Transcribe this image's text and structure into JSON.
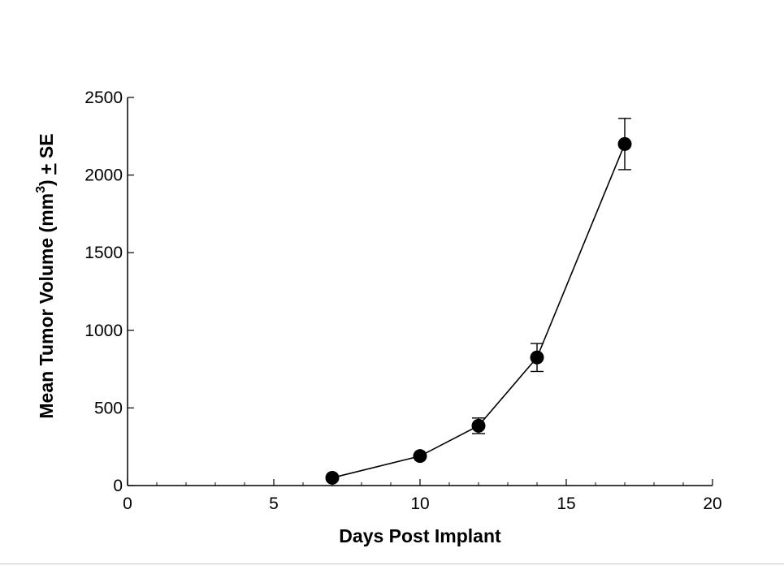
{
  "chart_data": {
    "type": "line",
    "title": "",
    "xlabel": "Days Post Implant",
    "ylabel": {
      "main": "Mean Tumor Volume (mm",
      "superscript": "3",
      "close": ")",
      "suffix": "SE"
    },
    "xlim": [
      0,
      20
    ],
    "ylim": [
      0,
      2500
    ],
    "xticks": [
      0,
      5,
      10,
      15,
      20
    ],
    "yticks": [
      0,
      500,
      1000,
      1500,
      2000,
      2500
    ],
    "xtick_labels": [
      "0",
      "5",
      "10",
      "15",
      "20"
    ],
    "ytick_labels": [
      "0",
      "500",
      "1000",
      "1500",
      "2000",
      "2500"
    ],
    "x_minor_step": 1,
    "series": [
      {
        "name": "Mean Tumor Volume",
        "x": [
          7,
          10,
          12,
          14,
          17
        ],
        "y": [
          50,
          190,
          385,
          825,
          2200
        ],
        "error": [
          0,
          0,
          50,
          90,
          165
        ]
      }
    ],
    "grid": false,
    "legend": "none",
    "color": "#000000"
  }
}
